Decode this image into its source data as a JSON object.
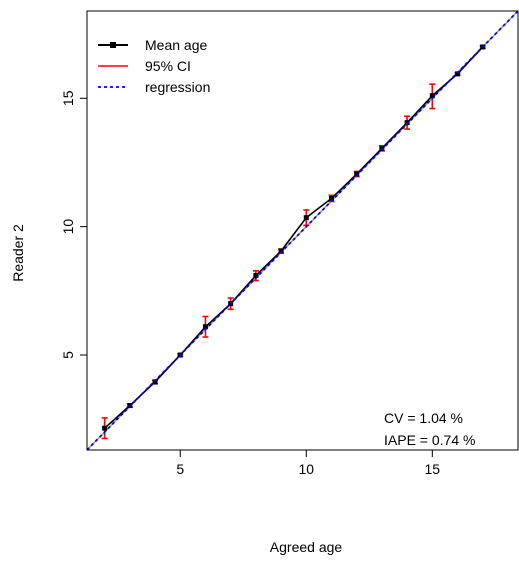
{
  "chart_data": {
    "type": "line",
    "xlabel": "Agreed age",
    "ylabel": "Reader 2",
    "xlim": [
      1.3,
      18.4
    ],
    "ylim": [
      1.3,
      18.4
    ],
    "x_ticks": [
      5,
      10,
      15
    ],
    "y_ticks": [
      5,
      10,
      15
    ],
    "grid": false,
    "legend_position": "top-left",
    "legend": {
      "mean": "Mean age",
      "ci": "95% CI",
      "regression": "regression"
    },
    "identity_line": true,
    "series": [
      {
        "name": "Mean age",
        "color": "#000000",
        "x": [
          2,
          3,
          4,
          5,
          6,
          7,
          8,
          9,
          10,
          11,
          12,
          13,
          14,
          15,
          16,
          17
        ],
        "y": [
          2.15,
          3.03,
          3.95,
          5.0,
          6.1,
          7.0,
          8.1,
          9.05,
          10.35,
          11.1,
          12.05,
          13.05,
          14.05,
          15.1,
          15.95,
          17.0
        ]
      },
      {
        "name": "95% CI",
        "color": "#ff0000",
        "x": [
          2,
          3,
          4,
          5,
          6,
          7,
          8,
          9,
          10,
          11,
          12,
          13,
          14,
          15,
          16,
          17
        ],
        "lower": [
          1.75,
          2.97,
          3.88,
          4.95,
          5.7,
          6.78,
          7.9,
          8.97,
          10.05,
          10.98,
          11.95,
          12.95,
          13.8,
          14.6,
          15.9,
          16.95
        ],
        "upper": [
          2.55,
          3.1,
          4.02,
          5.05,
          6.5,
          7.22,
          8.28,
          9.13,
          10.65,
          11.22,
          12.15,
          13.15,
          14.3,
          15.55,
          16.0,
          17.05
        ]
      },
      {
        "name": "regression",
        "color": "#0000ff",
        "intercept": 0.0,
        "slope": 1.0
      }
    ],
    "annotations": {
      "cv": "CV = 1.04 %",
      "iape": "IAPE = 0.74 %"
    }
  }
}
